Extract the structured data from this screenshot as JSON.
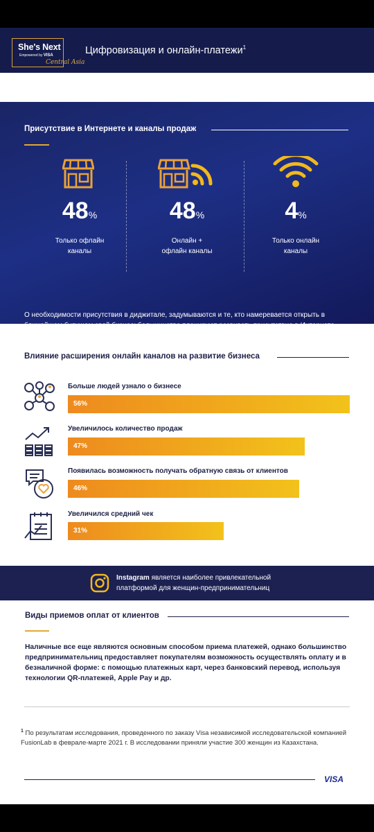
{
  "header": {
    "logo_main": "She's Next",
    "logo_powered": "Empowered by",
    "logo_visa": "VISA",
    "logo_region": "Central Asia",
    "title": "Цифровизация и онлайн-платежи",
    "title_sup": "1"
  },
  "presence": {
    "title": "Присутствие в Интернете и каналы продаж",
    "stats": [
      {
        "value": "48",
        "unit": "%",
        "label_line1": "Только офлайн",
        "label_line2": "каналы",
        "icon": "store-icon"
      },
      {
        "value": "48",
        "unit": "%",
        "label_line1": "Онлайн +",
        "label_line2": "офлайн каналы",
        "icon": "store-wifi-icon"
      },
      {
        "value": "4",
        "unit": "%",
        "label_line1": "Только онлайн",
        "label_line2": "каналы",
        "icon": "wifi-icon"
      }
    ],
    "description": "О необходимости присутствия в диджитале, задумываются и те, кто намеревается открыть в ближайшем будущем свой бизнес: большинство планируют развивать присутствие в Интернете совместно с запуском физической точки продажи."
  },
  "influence": {
    "title": "Влияние расширения онлайн каналов на развитие бизнеса",
    "items": [
      {
        "label": "Больше людей узнало о бизнесе",
        "pct_text": "56%",
        "value": 56,
        "icon": "network-people-icon"
      },
      {
        "label": "Увеличилось количество продаж",
        "pct_text": "47%",
        "value": 47,
        "icon": "sales-growth-icon"
      },
      {
        "label": "Появилась возможность получать обратную связь от клиентов",
        "pct_text": "46%",
        "value": 46,
        "icon": "feedback-chat-icon"
      },
      {
        "label": "Увеличился средний чек",
        "pct_text": "31%",
        "value": 31,
        "icon": "receipt-growth-icon"
      }
    ]
  },
  "instagram": {
    "brand": "Instagram",
    "text_rest": " является наиболее привлекательной платформой для женщин-предпринимательниц"
  },
  "payments": {
    "title": "Виды приемов оплат от клиентов",
    "text": "Наличные все еще являются основным способом приема платежей, однако большинство предпринимательниц предоставляет покупателям возможность осуществлять оплату и в безналичной форме: с помощью платежных карт, через банковский перевод, используя технологии QR-платежей, Apple Pay и др."
  },
  "footnote": {
    "marker": "1",
    "text": " По результатам исследования, проведенного по заказу Visa независимой исследовательской компанией FusionLab в феврале-марте 2021 г. В исследовании приняли участие 300 женщин из Казахстана."
  },
  "footer": {
    "brand": "VISA"
  },
  "colors": {
    "navy": "#151c4c",
    "gold": "#e3a834",
    "bar_start": "#ee8a1e",
    "bar_end": "#f2c21b"
  }
}
